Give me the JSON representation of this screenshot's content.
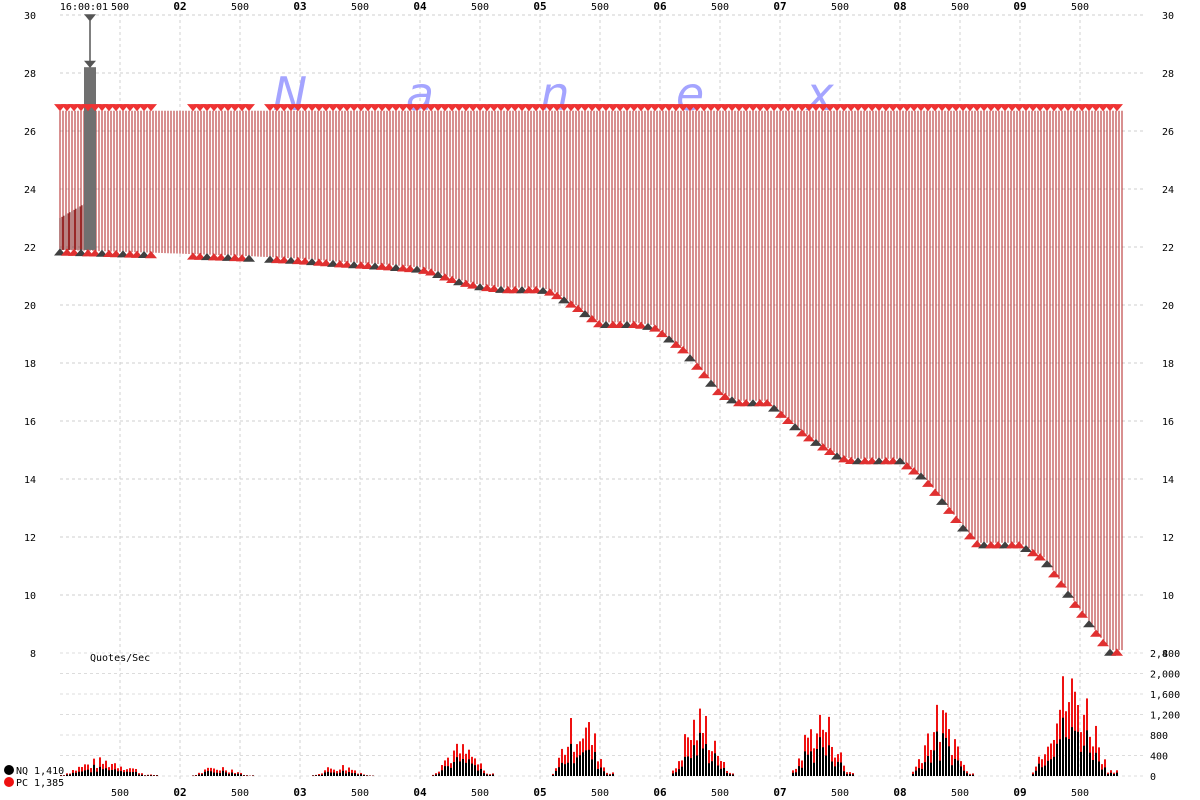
{
  "watermark": [
    "N",
    "a",
    "n",
    "e",
    "x"
  ],
  "chart_data": [
    {
      "type": "line",
      "description_series": "Quote price: bid/ask quote bands over one second of time",
      "x_ticks_top": [
        "16:00:01",
        "500",
        "02",
        "500",
        "03",
        "500",
        "04",
        "500",
        "05",
        "500",
        "06",
        "500",
        "07",
        "500",
        "08",
        "500",
        "09",
        "500"
      ],
      "x_ticks_bottom": [
        "500",
        "02",
        "500",
        "03",
        "500",
        "04",
        "500",
        "05",
        "500",
        "06",
        "500",
        "07",
        "500",
        "08",
        "500",
        "09",
        "500"
      ],
      "y_ticks": [
        "30",
        "28",
        "26",
        "24",
        "22",
        "20",
        "18",
        "16",
        "14",
        "12",
        "10",
        "8"
      ],
      "ylim": [
        8,
        30
      ],
      "grid": true,
      "series": [
        {
          "role": "ask",
          "color": "#ff3333",
          "points": [
            [
              1.0,
              26.7
            ],
            [
              9.6,
              26.7
            ]
          ]
        },
        {
          "role": "bid",
          "color": "#e03030",
          "points": [
            [
              1.0,
              21.9
            ],
            [
              1.8,
              21.8
            ],
            [
              2.5,
              21.7
            ],
            [
              3.0,
              21.6
            ],
            [
              3.3,
              21.5
            ],
            [
              3.7,
              21.4
            ],
            [
              4.0,
              21.3
            ],
            [
              4.1,
              21.2
            ],
            [
              4.3,
              20.9
            ],
            [
              4.5,
              20.7
            ],
            [
              4.7,
              20.6
            ],
            [
              5.0,
              20.6
            ],
            [
              5.1,
              20.5
            ],
            [
              5.3,
              20.0
            ],
            [
              5.5,
              19.4
            ],
            [
              5.8,
              19.4
            ],
            [
              5.95,
              19.3
            ],
            [
              6.2,
              18.5
            ],
            [
              6.5,
              17.0
            ],
            [
              6.65,
              16.7
            ],
            [
              6.9,
              16.7
            ],
            [
              7.2,
              15.6
            ],
            [
              7.5,
              14.8
            ],
            [
              7.6,
              14.7
            ],
            [
              8.0,
              14.7
            ],
            [
              8.2,
              14.1
            ],
            [
              8.5,
              12.5
            ],
            [
              8.65,
              11.8
            ],
            [
              9.0,
              11.8
            ],
            [
              9.2,
              11.3
            ],
            [
              9.5,
              9.5
            ],
            [
              9.75,
              8.1
            ],
            [
              9.85,
              8.1
            ]
          ]
        },
        {
          "role": "pre-spike ask",
          "color": "#555555",
          "points": [
            [
              1.0,
              23.0
            ],
            [
              1.25,
              23.6
            ],
            [
              1.28,
              27.5
            ],
            [
              1.3,
              29.8
            ]
          ]
        }
      ]
    },
    {
      "type": "bar",
      "title": "Quotes/Sec",
      "y_ticks": [
        "2,400",
        "2,000",
        "1,600",
        "1,200",
        "800",
        "400",
        "0"
      ],
      "ylim": [
        0,
        2400
      ],
      "legend": [
        {
          "name": "NQ 1,410",
          "color": "#000000"
        },
        {
          "name": "PC 1,385",
          "color": "#ee1111"
        }
      ],
      "bursts": [
        {
          "start": 1.0,
          "end": 1.8,
          "peak": 380
        },
        {
          "start": 2.1,
          "end": 2.6,
          "peak": 220
        },
        {
          "start": 3.1,
          "end": 3.6,
          "peak": 250
        },
        {
          "start": 4.1,
          "end": 4.6,
          "peak": 680
        },
        {
          "start": 5.1,
          "end": 5.6,
          "peak": 1350
        },
        {
          "start": 6.1,
          "end": 6.6,
          "peak": 1420
        },
        {
          "start": 7.1,
          "end": 7.6,
          "peak": 1420
        },
        {
          "start": 8.1,
          "end": 8.6,
          "peak": 1450
        },
        {
          "start": 9.1,
          "end": 9.8,
          "peak": 2220
        }
      ]
    }
  ]
}
